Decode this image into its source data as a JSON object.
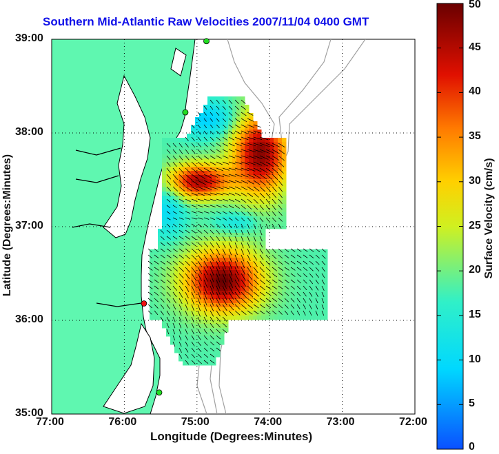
{
  "title": "Southern Mid-Atlantic Raw Velocities 2007/11/04 0400 GMT",
  "xlabel": "Longitude (Degrees:Minutes)",
  "ylabel": "Latitude (Degrees:Minutes)",
  "colorbar": {
    "label": "Surface Velocity (cm/s)",
    "range": [
      0,
      50
    ],
    "ticks": [
      "50",
      "45",
      "40",
      "35",
      "30",
      "25",
      "20",
      "15",
      "10",
      "5",
      "0"
    ]
  },
  "axes": {
    "x_ticks": [
      "77:00",
      "76:00",
      "75:00",
      "74:00",
      "73:00",
      "72:00"
    ],
    "y_ticks": [
      "39:00",
      "38:00",
      "37:00",
      "36:00",
      "35:00"
    ],
    "lon_range": [
      -77,
      -72
    ],
    "lat_range": [
      35,
      39
    ]
  },
  "colors": {
    "land": "#5ff7b0",
    "title": "#1010e8",
    "coastline": "#000000",
    "bathymetry": "#a0a0a0",
    "site_green": "#22dd22",
    "site_red": "#ee1111"
  },
  "sites": [
    {
      "status": "green",
      "lon": -74.87,
      "lat": 38.98
    },
    {
      "status": "green",
      "lon": -75.16,
      "lat": 38.22
    },
    {
      "status": "red",
      "lon": -75.73,
      "lat": 36.18
    },
    {
      "status": "green",
      "lon": -75.52,
      "lat": 35.23
    }
  ]
}
